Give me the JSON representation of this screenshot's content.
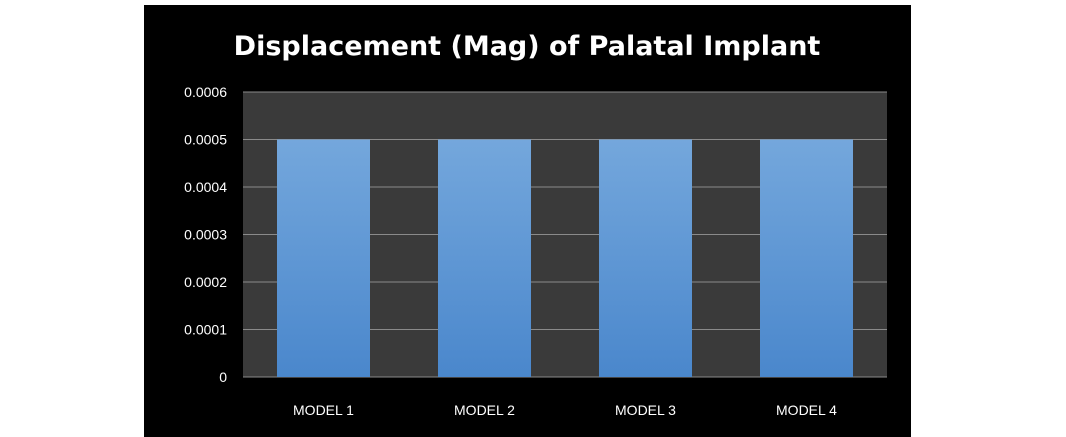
{
  "chart_data": {
    "type": "bar",
    "title": "Displacement (Mag) of Palatal Implant",
    "xlabel": "",
    "ylabel": "",
    "categories": [
      "MODEL 1",
      "MODEL 2",
      "MODEL 3",
      "MODEL 4"
    ],
    "values": [
      0.0005,
      0.0005,
      0.0005,
      0.0005
    ],
    "ylim": [
      0,
      0.0006
    ],
    "yticks": [
      "0",
      "0.0001",
      "0.0002",
      "0.0003",
      "0.0004",
      "0.0005",
      "0.0006"
    ],
    "grid": true,
    "legend": "none",
    "colors": {
      "background": "#000000",
      "plot_area": "#3a3a3a",
      "bar_top": "#74a7dc",
      "bar_bottom": "#4a87cc",
      "gridline": "#8a8a8a",
      "text": "#ffffff"
    }
  }
}
